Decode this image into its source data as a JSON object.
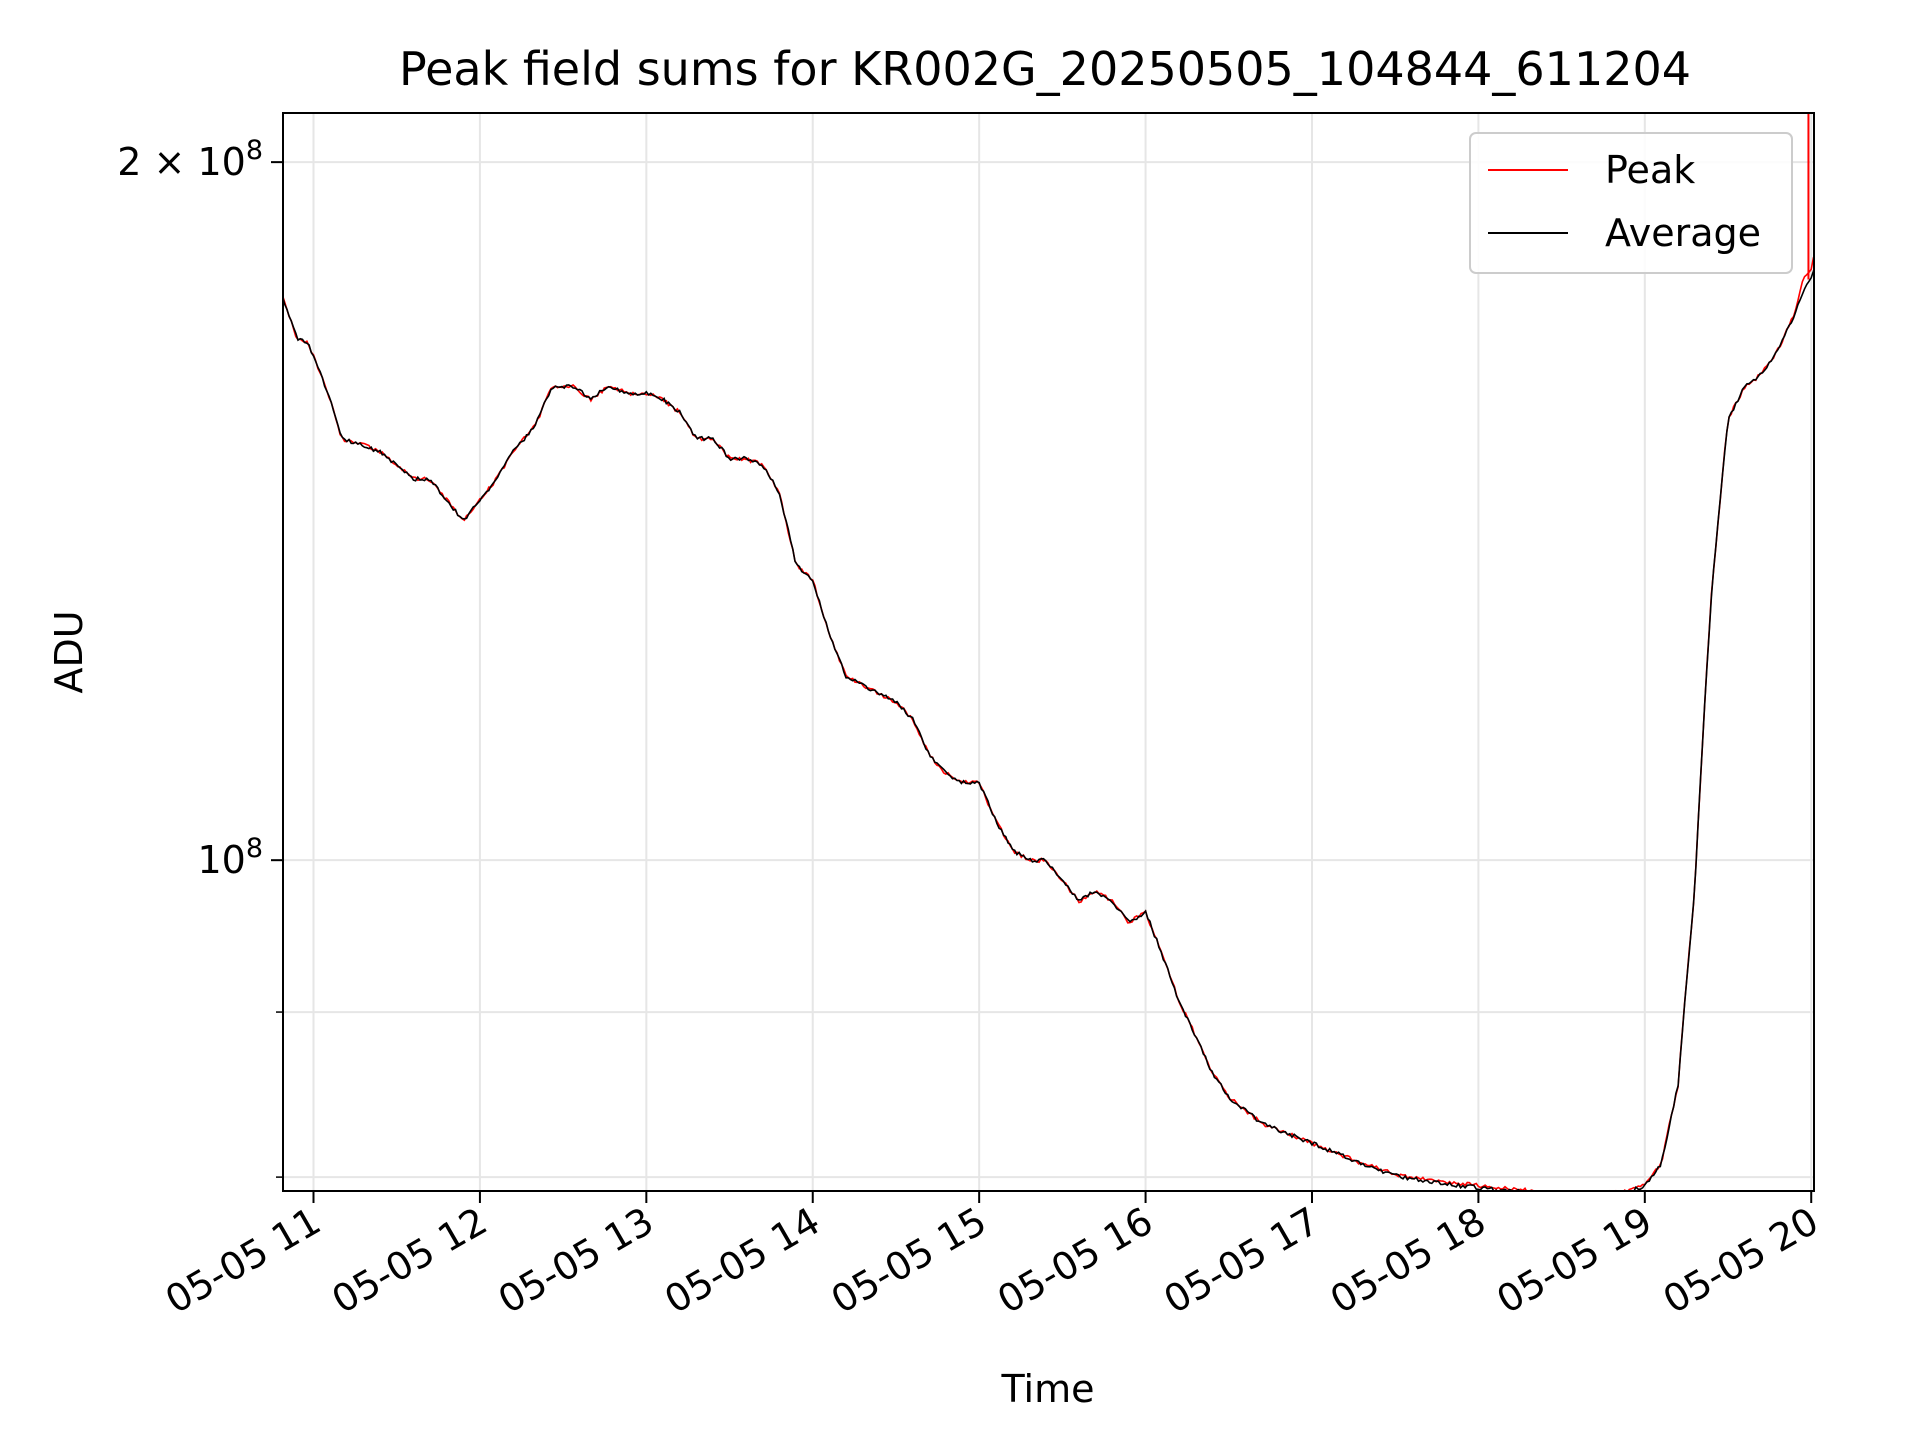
{
  "chart_data": {
    "type": "line",
    "title": "Peak field sums for KR002G_20250505_104844_611204",
    "xlabel": "Time",
    "ylabel": "ADU",
    "x_range": [
      "2025-05-05 10:49",
      "2025-05-05 20:01"
    ],
    "y_range": [
      72000000,
      210000000
    ],
    "y_scale": "log",
    "x_ticks": [
      "05-05 11",
      "05-05 12",
      "05-05 13",
      "05-05 14",
      "05-05 15",
      "05-05 16",
      "05-05 17",
      "05-05 18",
      "05-05 19",
      "05-05 20"
    ],
    "y_major_ticks": [
      {
        "value": 100000000,
        "mantissa": "",
        "base": "10",
        "exp": "8"
      },
      {
        "value": 200000000,
        "mantissa": "2 × ",
        "base": "10",
        "exp": "8"
      }
    ],
    "y_minor_ticks": [
      73000000,
      86000000
    ],
    "grid": true,
    "legend": {
      "position": "top-right",
      "entries": [
        "Peak",
        "Average"
      ]
    },
    "x_times": [
      "10:48",
      "10:54",
      "10:58",
      "11:00",
      "11:06",
      "11:10",
      "11:18",
      "11:24",
      "11:30",
      "11:36",
      "11:42",
      "11:48",
      "11:54",
      "12:00",
      "12:06",
      "12:12",
      "12:20",
      "12:26",
      "12:34",
      "12:40",
      "12:46",
      "12:54",
      "13:00",
      "13:06",
      "13:12",
      "13:18",
      "13:24",
      "13:30",
      "13:36",
      "13:42",
      "13:48",
      "13:54",
      "14:00",
      "14:06",
      "14:12",
      "14:18",
      "14:24",
      "14:30",
      "14:36",
      "14:42",
      "14:48",
      "14:54",
      "15:00",
      "15:06",
      "15:12",
      "15:18",
      "15:24",
      "15:30",
      "15:36",
      "15:42",
      "15:48",
      "15:54",
      "16:00",
      "16:06",
      "16:12",
      "16:18",
      "16:24",
      "16:30",
      "16:42",
      "16:54",
      "17:06",
      "17:18",
      "17:30",
      "17:48",
      "18:06",
      "18:24",
      "18:42",
      "18:54",
      "19:00",
      "19:06",
      "19:12",
      "19:18",
      "19:24",
      "19:30",
      "19:36",
      "19:42",
      "19:48",
      "19:54",
      "19:57",
      "20:00",
      "20:02"
    ],
    "series": [
      {
        "name": "Peak",
        "color": "#ff0000",
        "values": [
          176,
          168,
          167,
          165,
          158,
          152,
          151,
          150,
          148,
          146,
          146,
          143,
          140,
          143,
          146,
          150,
          154,
          160,
          160,
          158,
          160,
          159,
          159,
          158,
          156,
          152,
          152,
          149,
          149,
          148,
          144,
          134,
          132,
          125,
          120,
          119,
          118,
          117,
          115,
          111,
          109,
          108,
          108,
          104,
          101,
          100,
          100,
          98,
          96,
          97,
          96,
          94,
          95,
          91,
          87,
          84,
          81,
          79,
          77,
          76,
          75,
          74,
          73.2,
          72.6,
          72.3,
          71.9,
          71.8,
          72.0,
          72.5,
          74,
          80,
          97,
          130,
          155,
          160,
          162,
          166,
          172,
          178,
          180,
          184
        ]
      },
      {
        "name": "Average",
        "color": "#000000",
        "values": [
          176,
          168,
          167,
          165,
          158,
          152,
          151,
          150,
          148,
          146,
          146,
          143,
          140,
          143,
          146,
          150,
          154,
          160,
          160,
          158,
          160,
          159,
          159,
          158,
          156,
          152,
          152,
          149,
          149,
          148,
          144,
          134,
          132,
          125,
          120,
          119,
          118,
          117,
          115,
          111,
          109,
          108,
          108,
          104,
          101,
          100,
          100,
          98,
          96,
          97,
          96,
          94,
          95,
          91,
          87,
          84,
          81,
          79,
          77,
          76,
          75,
          74,
          73.1,
          72.5,
          72.1,
          71.8,
          71.7,
          71.9,
          72.4,
          74,
          80,
          97,
          130,
          155,
          160,
          162,
          166,
          172,
          176,
          178,
          182
        ]
      }
    ],
    "peak_spike": {
      "time": "19:59",
      "value": 210000000
    }
  }
}
